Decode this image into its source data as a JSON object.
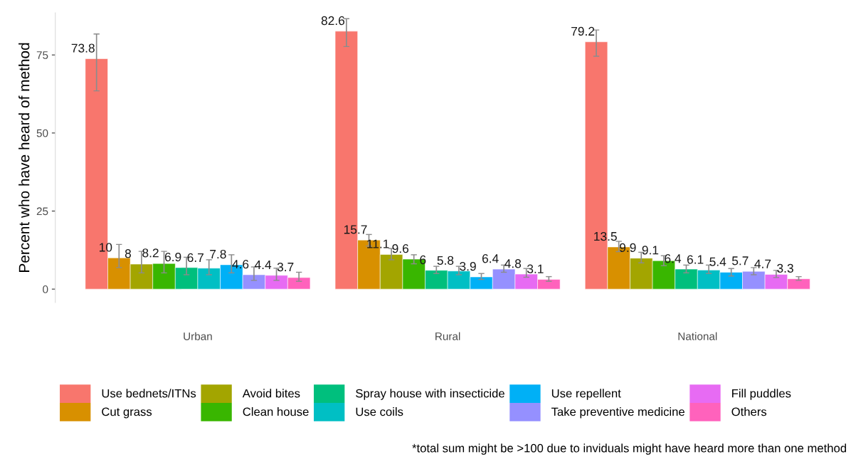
{
  "chart_data": {
    "type": "bar",
    "ylabel": "Percent who have heard of method",
    "categories": [
      "Urban",
      "Rural",
      "National"
    ],
    "series": [
      {
        "name": "Use bednets/ITNs",
        "color": "#f8766d",
        "values": [
          73.8,
          82.6,
          79.2
        ],
        "errors": [
          [
            63.5,
            81.7
          ],
          [
            77.7,
            86.6
          ],
          [
            74.6,
            83.0
          ]
        ]
      },
      {
        "name": "Cut grass",
        "color": "#d89000",
        "values": [
          10,
          15.7,
          13.5
        ],
        "errors": [
          [
            6.9,
            14.3
          ],
          [
            13.8,
            17.5
          ],
          [
            12.0,
            15.3
          ]
        ]
      },
      {
        "name": "Avoid bites",
        "color": "#a3a500",
        "values": [
          8,
          11.1,
          9.9
        ],
        "errors": [
          [
            5.2,
            12.1
          ],
          [
            9.4,
            13.0
          ],
          [
            8.4,
            11.8
          ]
        ]
      },
      {
        "name": "Clean house",
        "color": "#39b600",
        "values": [
          8.2,
          9.6,
          9.1
        ],
        "errors": [
          [
            5.2,
            12.1
          ],
          [
            8.1,
            11.0
          ],
          [
            7.5,
            10.7
          ]
        ]
      },
      {
        "name": "Spray house with insecticide",
        "color": "#00bf7d",
        "values": [
          6.9,
          6,
          6.4
        ],
        "errors": [
          [
            4.6,
            10.2
          ],
          [
            5.0,
            7.3
          ],
          [
            5.2,
            7.7
          ]
        ]
      },
      {
        "name": "Use coils",
        "color": "#00bfc4",
        "values": [
          6.7,
          5.8,
          6.1
        ],
        "errors": [
          [
            4.6,
            9.4
          ],
          [
            4.6,
            7.3
          ],
          [
            5.0,
            7.7
          ]
        ]
      },
      {
        "name": "Use repellent",
        "color": "#00b0f6",
        "values": [
          7.8,
          3.9,
          5.4
        ],
        "errors": [
          [
            5.2,
            11.0
          ],
          [
            3.1,
            5.0
          ],
          [
            4.2,
            6.6
          ]
        ]
      },
      {
        "name": "Take preventive medicine",
        "color": "#9590ff",
        "values": [
          4.6,
          6.4,
          5.7
        ],
        "errors": [
          [
            2.8,
            7.1
          ],
          [
            5.4,
            7.7
          ],
          [
            4.6,
            6.9
          ]
        ]
      },
      {
        "name": "Fill puddles",
        "color": "#e76bf3",
        "values": [
          4.4,
          4.8,
          4.7
        ],
        "errors": [
          [
            2.8,
            6.7
          ],
          [
            3.8,
            6.6
          ],
          [
            3.7,
            6.0
          ]
        ]
      },
      {
        "name": "Others",
        "color": "#ff62bc",
        "values": [
          3.7,
          3.1,
          3.3
        ],
        "errors": [
          [
            2.5,
            5.4
          ],
          [
            2.5,
            4.0
          ],
          [
            2.8,
            4.0
          ]
        ]
      }
    ],
    "ylim": [
      -4.3,
      88.5
    ],
    "yticks": [
      0,
      25,
      50,
      75
    ],
    "grid": false,
    "legend": "bottom",
    "data_labels": true,
    "annotations": [
      "*total sum might be >100 due to inviduals might have heard more than one method"
    ]
  }
}
